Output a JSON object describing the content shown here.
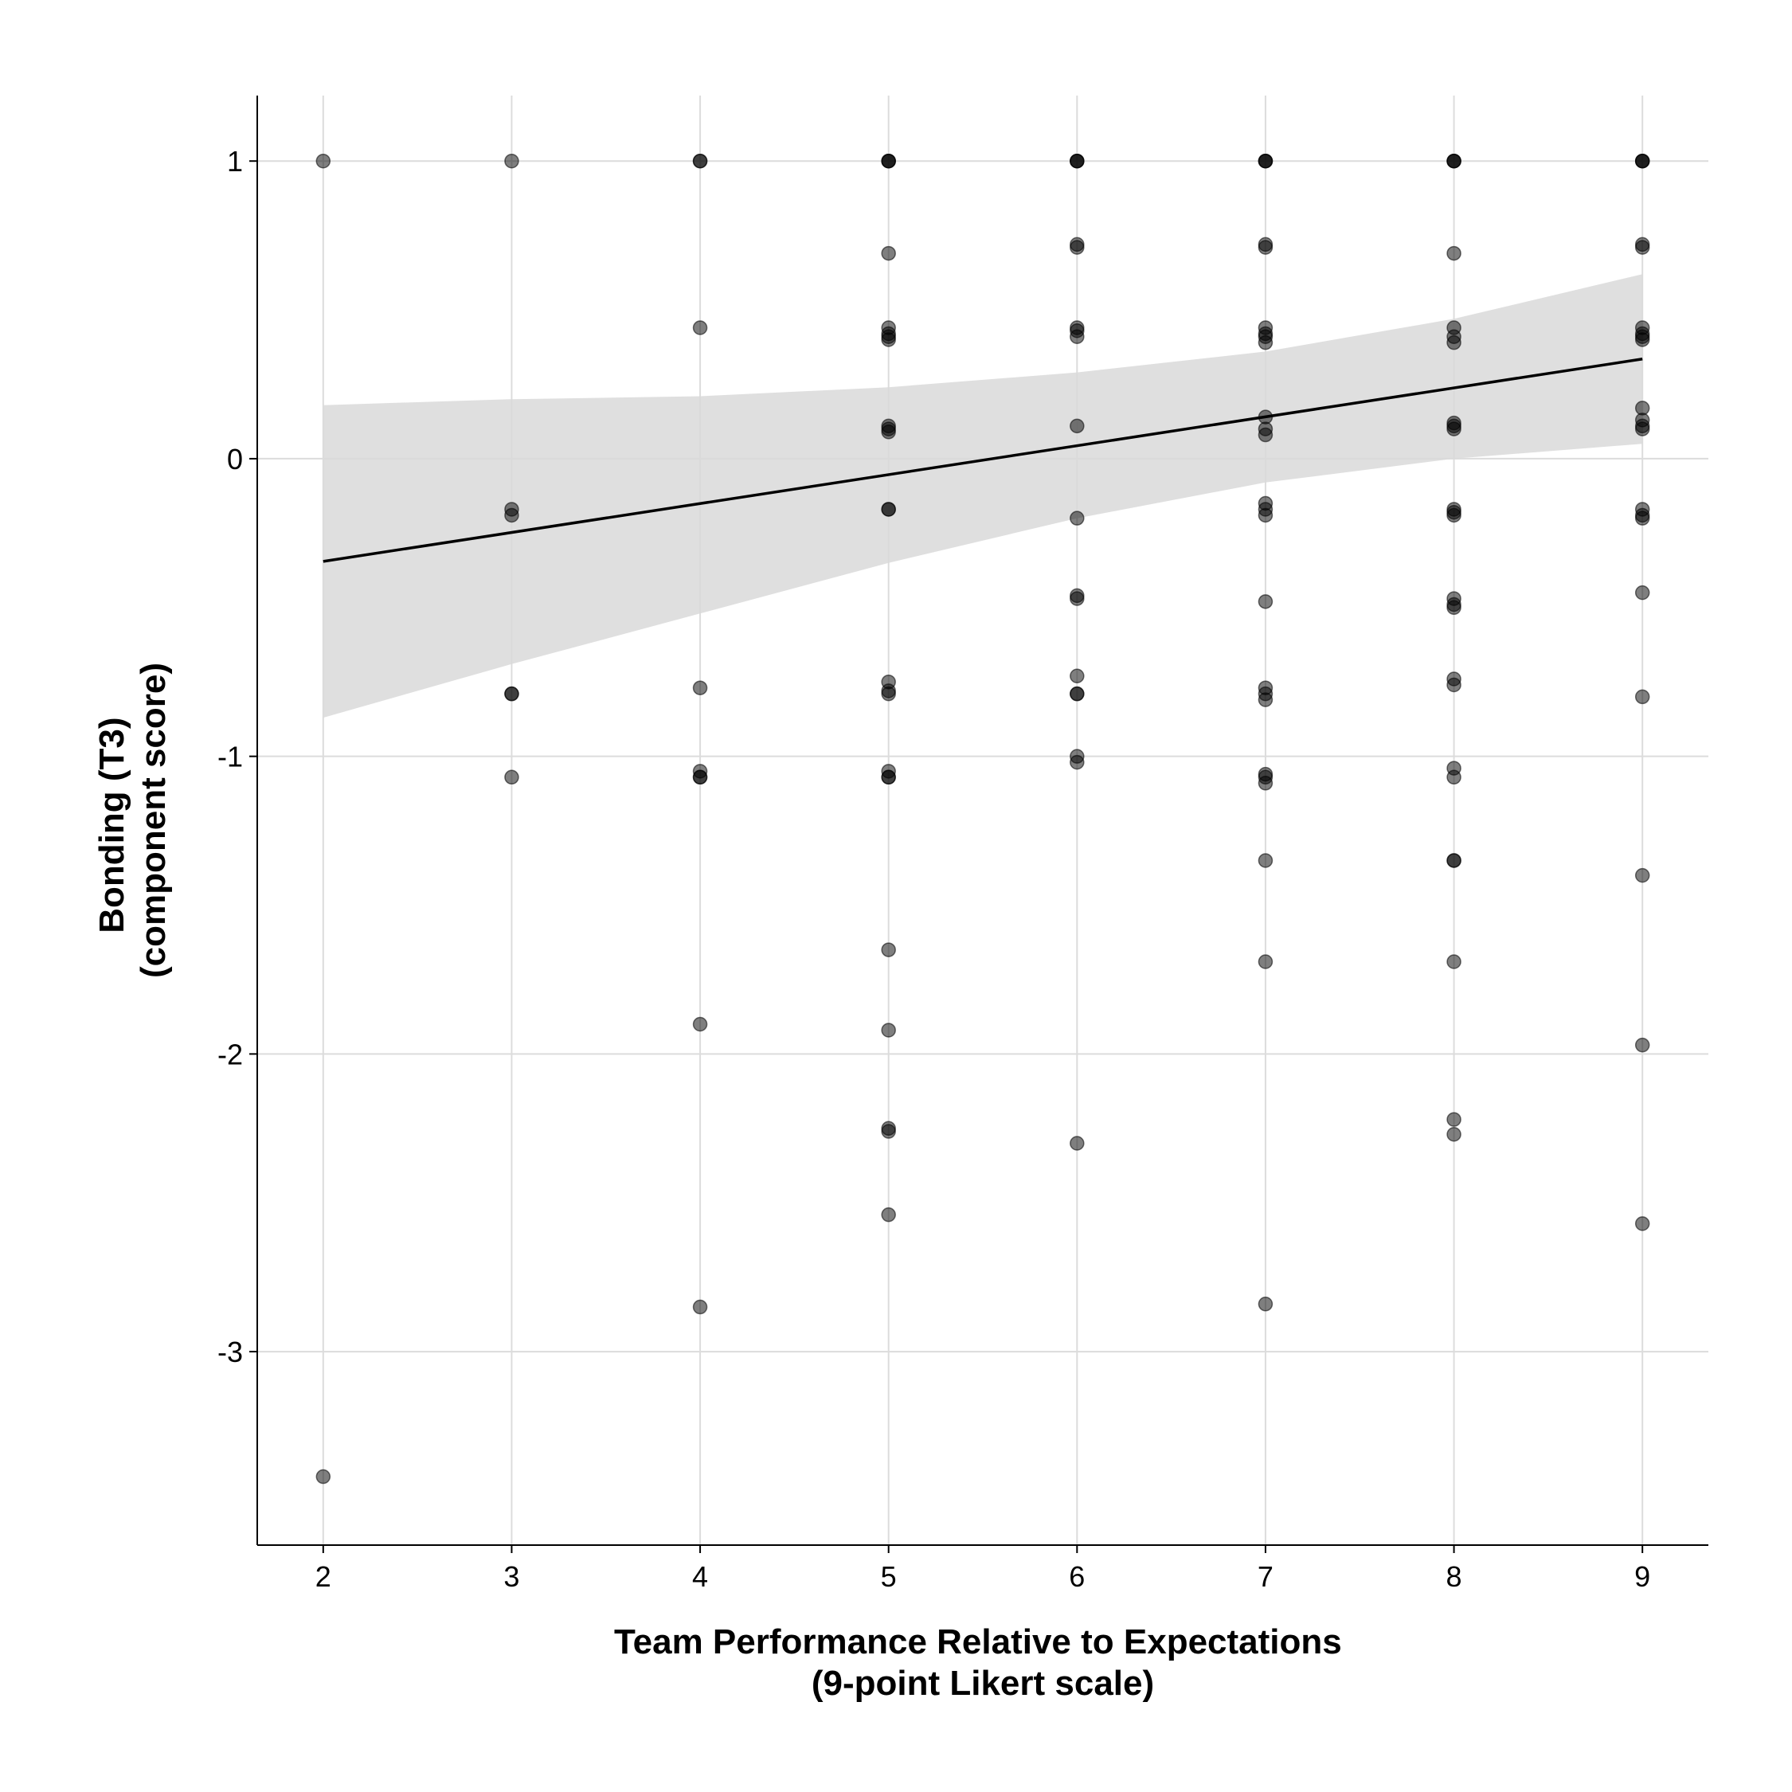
{
  "chart_data": {
    "type": "scatter",
    "title": "",
    "xlabel": [
      "Team Performance Relative to Expectations",
      "(9-point Likert scale)"
    ],
    "ylabel": [
      "Bonding (T3)",
      "(component score)"
    ],
    "xlim": [
      1.65,
      9.35
    ],
    "ylim": [
      -3.65,
      1.22
    ],
    "x_ticks": [
      2,
      3,
      4,
      5,
      6,
      7,
      8,
      9
    ],
    "y_ticks": [
      1,
      0,
      -1,
      -2,
      -3
    ],
    "grid": true,
    "legend": "none",
    "point_color": "#000000",
    "point_opacity": 0.5,
    "ribbon_color": "#d9d9d9",
    "line_color": "#000000",
    "points": [
      {
        "x": 2,
        "y": 1.0
      },
      {
        "x": 2,
        "y": -3.42
      },
      {
        "x": 3,
        "y": 1.0
      },
      {
        "x": 3,
        "y": -0.17
      },
      {
        "x": 3,
        "y": -0.19
      },
      {
        "x": 3,
        "y": -0.79
      },
      {
        "x": 3,
        "y": -0.79
      },
      {
        "x": 3,
        "y": -1.07
      },
      {
        "x": 4,
        "y": 1.0
      },
      {
        "x": 4,
        "y": 1.0
      },
      {
        "x": 4,
        "y": 0.44
      },
      {
        "x": 4,
        "y": -0.77
      },
      {
        "x": 4,
        "y": -1.05
      },
      {
        "x": 4,
        "y": -1.07
      },
      {
        "x": 4,
        "y": -1.07
      },
      {
        "x": 4,
        "y": -1.9
      },
      {
        "x": 4,
        "y": -2.85
      },
      {
        "x": 5,
        "y": 1.0
      },
      {
        "x": 5,
        "y": 1.0
      },
      {
        "x": 5,
        "y": 1.0
      },
      {
        "x": 5,
        "y": 0.69
      },
      {
        "x": 5,
        "y": 0.44
      },
      {
        "x": 5,
        "y": 0.42
      },
      {
        "x": 5,
        "y": 0.4
      },
      {
        "x": 5,
        "y": 0.41
      },
      {
        "x": 5,
        "y": 0.11
      },
      {
        "x": 5,
        "y": 0.1
      },
      {
        "x": 5,
        "y": 0.09
      },
      {
        "x": 5,
        "y": -0.17
      },
      {
        "x": 5,
        "y": -0.17
      },
      {
        "x": 5,
        "y": -0.75
      },
      {
        "x": 5,
        "y": -0.78
      },
      {
        "x": 5,
        "y": -0.79
      },
      {
        "x": 5,
        "y": -1.05
      },
      {
        "x": 5,
        "y": -1.07
      },
      {
        "x": 5,
        "y": -1.07
      },
      {
        "x": 5,
        "y": -1.65
      },
      {
        "x": 5,
        "y": -1.92
      },
      {
        "x": 5,
        "y": -2.25
      },
      {
        "x": 5,
        "y": -2.26
      },
      {
        "x": 5,
        "y": -2.54
      },
      {
        "x": 6,
        "y": 1.0
      },
      {
        "x": 6,
        "y": 1.0
      },
      {
        "x": 6,
        "y": 1.0
      },
      {
        "x": 6,
        "y": 0.72
      },
      {
        "x": 6,
        "y": 0.71
      },
      {
        "x": 6,
        "y": 0.44
      },
      {
        "x": 6,
        "y": 0.43
      },
      {
        "x": 6,
        "y": 0.41
      },
      {
        "x": 6,
        "y": 0.11
      },
      {
        "x": 6,
        "y": -0.2
      },
      {
        "x": 6,
        "y": -0.46
      },
      {
        "x": 6,
        "y": -0.47
      },
      {
        "x": 6,
        "y": -0.73
      },
      {
        "x": 6,
        "y": -0.79
      },
      {
        "x": 6,
        "y": -0.79
      },
      {
        "x": 6,
        "y": -1.0
      },
      {
        "x": 6,
        "y": -1.02
      },
      {
        "x": 6,
        "y": -2.3
      },
      {
        "x": 7,
        "y": 1.0
      },
      {
        "x": 7,
        "y": 1.0
      },
      {
        "x": 7,
        "y": 1.0
      },
      {
        "x": 7,
        "y": 0.72
      },
      {
        "x": 7,
        "y": 0.71
      },
      {
        "x": 7,
        "y": 0.44
      },
      {
        "x": 7,
        "y": 0.42
      },
      {
        "x": 7,
        "y": 0.41
      },
      {
        "x": 7,
        "y": 0.39
      },
      {
        "x": 7,
        "y": 0.14
      },
      {
        "x": 7,
        "y": 0.1
      },
      {
        "x": 7,
        "y": 0.08
      },
      {
        "x": 7,
        "y": -0.15
      },
      {
        "x": 7,
        "y": -0.17
      },
      {
        "x": 7,
        "y": -0.19
      },
      {
        "x": 7,
        "y": -0.48
      },
      {
        "x": 7,
        "y": -0.77
      },
      {
        "x": 7,
        "y": -0.79
      },
      {
        "x": 7,
        "y": -0.81
      },
      {
        "x": 7,
        "y": -1.06
      },
      {
        "x": 7,
        "y": -1.07
      },
      {
        "x": 7,
        "y": -1.09
      },
      {
        "x": 7,
        "y": -1.35
      },
      {
        "x": 7,
        "y": -1.69
      },
      {
        "x": 7,
        "y": -2.84
      },
      {
        "x": 8,
        "y": 1.0
      },
      {
        "x": 8,
        "y": 1.0
      },
      {
        "x": 8,
        "y": 1.0
      },
      {
        "x": 8,
        "y": 0.69
      },
      {
        "x": 8,
        "y": 0.44
      },
      {
        "x": 8,
        "y": 0.41
      },
      {
        "x": 8,
        "y": 0.39
      },
      {
        "x": 8,
        "y": 0.12
      },
      {
        "x": 8,
        "y": 0.11
      },
      {
        "x": 8,
        "y": 0.1
      },
      {
        "x": 8,
        "y": -0.17
      },
      {
        "x": 8,
        "y": -0.18
      },
      {
        "x": 8,
        "y": -0.19
      },
      {
        "x": 8,
        "y": -0.47
      },
      {
        "x": 8,
        "y": -0.49
      },
      {
        "x": 8,
        "y": -0.5
      },
      {
        "x": 8,
        "y": -0.74
      },
      {
        "x": 8,
        "y": -0.76
      },
      {
        "x": 8,
        "y": -1.04
      },
      {
        "x": 8,
        "y": -1.07
      },
      {
        "x": 8,
        "y": -1.35
      },
      {
        "x": 8,
        "y": -1.35
      },
      {
        "x": 8,
        "y": -1.69
      },
      {
        "x": 8,
        "y": -2.22
      },
      {
        "x": 8,
        "y": -2.27
      },
      {
        "x": 9,
        "y": 1.0
      },
      {
        "x": 9,
        "y": 1.0
      },
      {
        "x": 9,
        "y": 1.0
      },
      {
        "x": 9,
        "y": 0.72
      },
      {
        "x": 9,
        "y": 0.71
      },
      {
        "x": 9,
        "y": 0.44
      },
      {
        "x": 9,
        "y": 0.42
      },
      {
        "x": 9,
        "y": 0.41
      },
      {
        "x": 9,
        "y": 0.4
      },
      {
        "x": 9,
        "y": 0.17
      },
      {
        "x": 9,
        "y": 0.13
      },
      {
        "x": 9,
        "y": 0.11
      },
      {
        "x": 9,
        "y": 0.1
      },
      {
        "x": 9,
        "y": -0.17
      },
      {
        "x": 9,
        "y": -0.19
      },
      {
        "x": 9,
        "y": -0.2
      },
      {
        "x": 9,
        "y": -0.45
      },
      {
        "x": 9,
        "y": -0.8
      },
      {
        "x": 9,
        "y": -1.4
      },
      {
        "x": 9,
        "y": -1.97
      },
      {
        "x": 9,
        "y": -2.57
      }
    ],
    "fit_line": [
      {
        "x": 2,
        "y": -0.345
      },
      {
        "x": 9,
        "y": 0.335
      }
    ],
    "confidence_band": [
      {
        "x": 2,
        "lower": -0.87,
        "upper": 0.18
      },
      {
        "x": 3,
        "lower": -0.69,
        "upper": 0.2
      },
      {
        "x": 4,
        "lower": -0.52,
        "upper": 0.21
      },
      {
        "x": 5,
        "lower": -0.35,
        "upper": 0.24
      },
      {
        "x": 6,
        "lower": -0.2,
        "upper": 0.29
      },
      {
        "x": 7,
        "lower": -0.08,
        "upper": 0.36
      },
      {
        "x": 8,
        "lower": 0.0,
        "upper": 0.47
      },
      {
        "x": 9,
        "lower": 0.05,
        "upper": 0.62
      }
    ]
  }
}
